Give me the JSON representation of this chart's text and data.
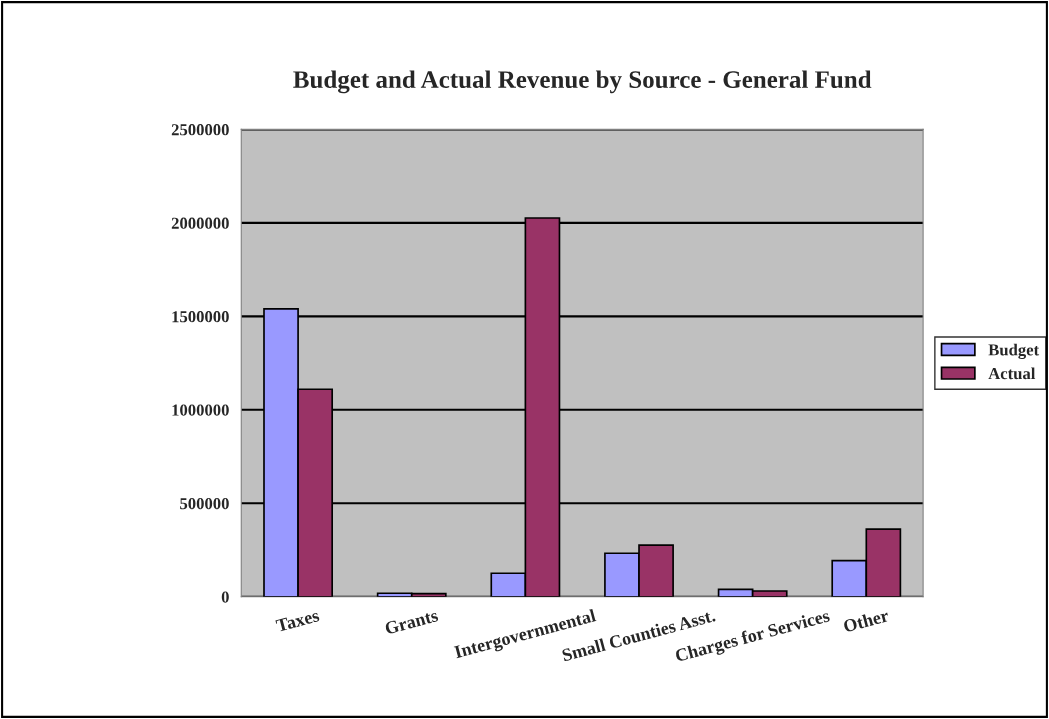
{
  "chart_data": {
    "type": "bar",
    "title": "Budget and Actual Revenue by Source - General Fund",
    "categories": [
      "Taxes",
      "Grants",
      "Intergovernmental",
      "Small Counties Asst.",
      "Charges for Services",
      "Other"
    ],
    "series": [
      {
        "name": "Budget",
        "color": "#9999ff",
        "values": [
          1540000,
          19000,
          126000,
          233000,
          40000,
          193000
        ]
      },
      {
        "name": "Actual",
        "color": "#993366",
        "values": [
          1110000,
          17000,
          2026000,
          276000,
          31000,
          362000
        ]
      }
    ],
    "ylim": [
      0,
      2500000
    ],
    "yticks": [
      0,
      500000,
      1000000,
      1500000,
      2000000,
      2500000
    ],
    "grid": "y",
    "legend": "right"
  }
}
